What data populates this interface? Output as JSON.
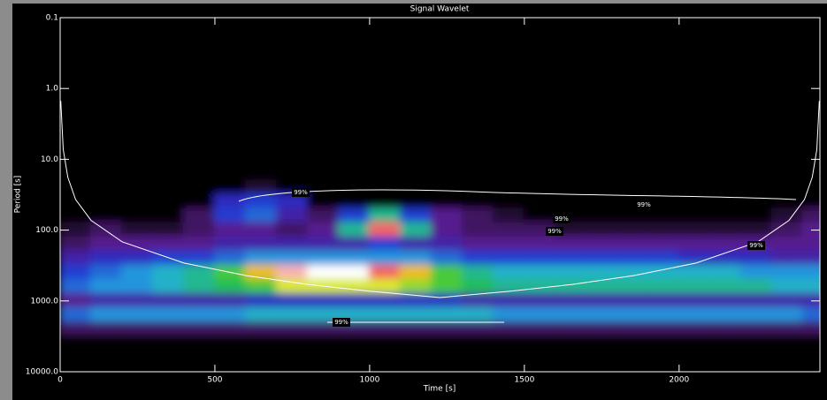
{
  "chart_data": {
    "type": "heatmap",
    "title": "Signal Wavelet",
    "xlabel": "Time [s]",
    "ylabel": "Period [s]",
    "xlim": [
      0,
      2455
    ],
    "xticks": [
      0,
      500,
      1000,
      1500,
      2000
    ],
    "ylim": [
      0.1,
      10000
    ],
    "log_y": true,
    "y_inverted": true,
    "yticks": [
      0.1,
      {
        "value": 1,
        "label": "1.0"
      },
      {
        "value": 10,
        "label": "10.0"
      },
      {
        "value": 100,
        "label": "100.0"
      },
      {
        "value": 1000,
        "label": "1000.0"
      },
      {
        "value": 10000,
        "label": "10000.0"
      }
    ],
    "x": [
      50,
      150,
      250,
      350,
      450,
      550,
      650,
      750,
      850,
      950,
      1050,
      1150,
      1250,
      1350,
      1450,
      1550,
      1650,
      1750,
      1850,
      1950,
      2050,
      2150,
      2250,
      2350,
      2450
    ],
    "y": [
      25,
      40,
      63,
      100,
      160,
      250,
      400,
      630,
      1000,
      1600,
      2500
    ],
    "zlim": [
      0,
      10
    ],
    "colormap": [
      "#000000",
      "#5a1a8c",
      "#2030d0",
      "#20b0e0",
      "#20c040",
      "#f0f020",
      "#f02020",
      "#ffffff"
    ],
    "z": [
      [
        0,
        0,
        0,
        0,
        0,
        0,
        0.5,
        0,
        0,
        0,
        0,
        0,
        0,
        0,
        0,
        0,
        0,
        0,
        0,
        0,
        0,
        0,
        0,
        0,
        0
      ],
      [
        0,
        0,
        0,
        0,
        0,
        2.5,
        3,
        2.5,
        0,
        0,
        0,
        0,
        0,
        0,
        0,
        0,
        0,
        0,
        0,
        0,
        0,
        0,
        0,
        0,
        0
      ],
      [
        0,
        0,
        0,
        0,
        1,
        3,
        3.5,
        2,
        1,
        3,
        5,
        3,
        1.5,
        1,
        0.5,
        0,
        0,
        0,
        0,
        0,
        0,
        0,
        0,
        0.5,
        1
      ],
      [
        0.5,
        1,
        0.5,
        0.5,
        1,
        1.5,
        1.5,
        1,
        1.5,
        5,
        9,
        5,
        1.5,
        1,
        1,
        1,
        0.5,
        0.5,
        0.5,
        0.5,
        0.5,
        0.5,
        0.5,
        1,
        1.5
      ],
      [
        1,
        1.5,
        1.5,
        1.5,
        1.5,
        2,
        2,
        2,
        2,
        2,
        3,
        2,
        2,
        1.5,
        1.5,
        1.5,
        1.5,
        1.5,
        1.5,
        1.5,
        1.5,
        1.5,
        1.5,
        1.5,
        1.5
      ],
      [
        2,
        2.5,
        2.5,
        3,
        3,
        3.5,
        4,
        4,
        4,
        4,
        4,
        4,
        3.5,
        3,
        3,
        3,
        3,
        3,
        3,
        3,
        2.5,
        2.5,
        2.5,
        2,
        2
      ],
      [
        3,
        3.5,
        4,
        4.5,
        5,
        6,
        7.5,
        9.5,
        10,
        10,
        9,
        7.5,
        6,
        5,
        4.5,
        4.5,
        4.5,
        4.5,
        4.5,
        4.5,
        4.5,
        4.5,
        4,
        4,
        4
      ],
      [
        3.5,
        4,
        4,
        4.5,
        5,
        5.5,
        6,
        7,
        7,
        7,
        7,
        6.5,
        6,
        5.5,
        5,
        5,
        5,
        5,
        5,
        5,
        5,
        5,
        5,
        4.5,
        4.5
      ],
      [
        1.5,
        2,
        2,
        2,
        2,
        2,
        2.5,
        2.5,
        2.5,
        2.5,
        2.5,
        2.5,
        2.5,
        2,
        2,
        2,
        2,
        2,
        2,
        2,
        2,
        2,
        2,
        2,
        2
      ],
      [
        3.5,
        4,
        4,
        4,
        4,
        4,
        4.5,
        4.5,
        4.5,
        4.5,
        4.5,
        4.5,
        4.5,
        4.5,
        4,
        4,
        4,
        4,
        4,
        4,
        4,
        4,
        4,
        4,
        3.5
      ],
      [
        1,
        1,
        1,
        1,
        1,
        1,
        1,
        1,
        1,
        1,
        1,
        1,
        1,
        1,
        1,
        1,
        1,
        1,
        1,
        1,
        1,
        1,
        1,
        1,
        1
      ]
    ],
    "coi": {
      "x": [
        2,
        10,
        25,
        50,
        100,
        200,
        400,
        600,
        800,
        1000,
        1227,
        1455,
        1655,
        1855,
        2055,
        2255,
        2355,
        2405,
        2430,
        2445,
        2453
      ],
      "values": [
        1.5,
        7.3,
        18,
        37,
        73,
        146,
        292,
        438,
        584,
        730,
        896,
        730,
        584,
        438,
        292,
        146,
        73,
        37,
        18,
        7.3,
        1.5
      ]
    },
    "annotations": [
      "99%",
      "99%",
      "99%",
      "99%",
      "99%",
      "99%"
    ]
  }
}
